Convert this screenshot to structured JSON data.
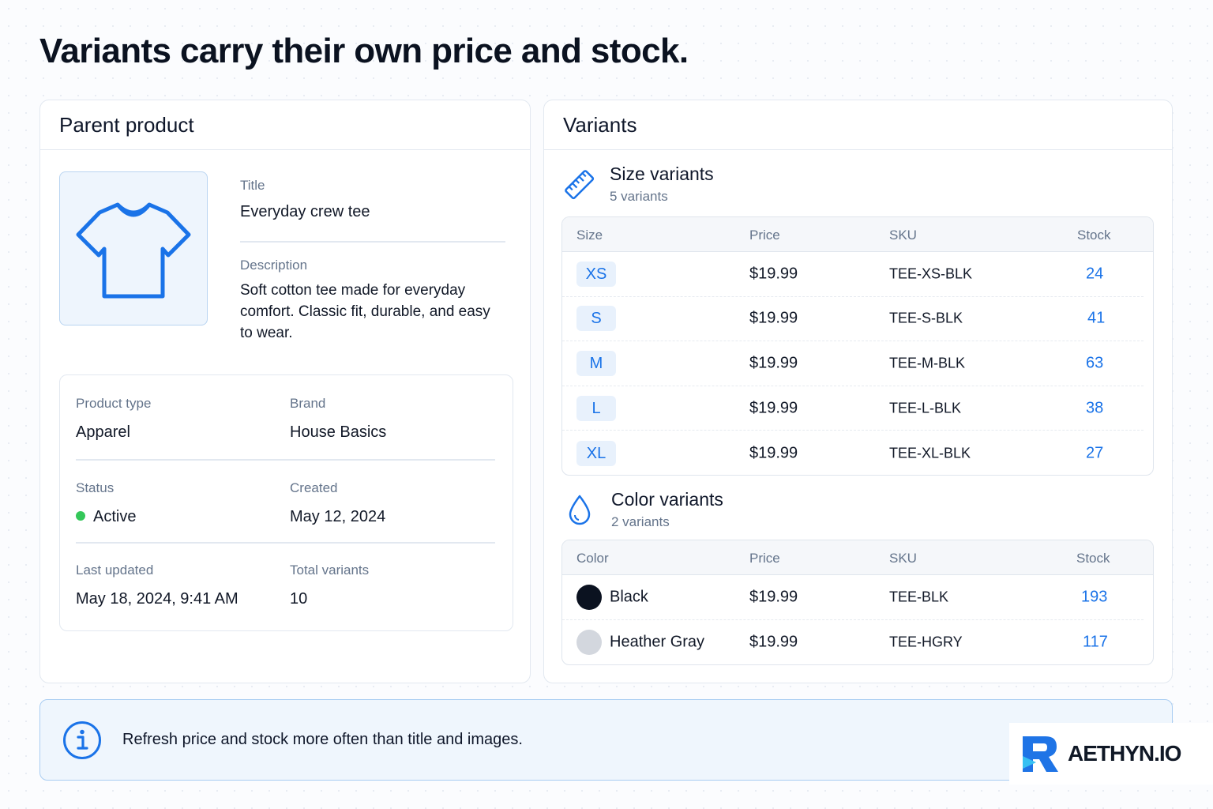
{
  "headline": "Variants carry their own price and stock.",
  "parent": {
    "heading": "Parent product",
    "image_icon": "tshirt-icon",
    "title_label": "Title",
    "title_value": "Everyday crew tee",
    "description_label": "Description",
    "description_value": "Soft cotton tee made for everyday comfort. Classic fit, durable, and easy to wear.",
    "meta": {
      "product_type_label": "Product type",
      "product_type_value": "Apparel",
      "brand_label": "Brand",
      "brand_value": "House Basics",
      "status_label": "Status",
      "status_value": "Active",
      "status_color": "#34c759",
      "created_label": "Created",
      "created_value": "May 12, 2024",
      "updated_label": "Last updated",
      "updated_value": "May 18, 2024, 9:41 AM",
      "total_label": "Total variants",
      "total_value": "10"
    }
  },
  "variants": {
    "heading": "Variants",
    "size": {
      "icon": "ruler-icon",
      "title": "Size variants",
      "subtitle": "5 variants",
      "columns": [
        "Size",
        "Price",
        "SKU",
        "Stock"
      ],
      "rows": [
        {
          "size": "XS",
          "price": "$19.99",
          "sku": "TEE-XS-BLK",
          "stock": "24"
        },
        {
          "size": "S",
          "price": "$19.99",
          "sku": "TEE-S-BLK",
          "stock": "41"
        },
        {
          "size": "M",
          "price": "$19.99",
          "sku": "TEE-M-BLK",
          "stock": "63"
        },
        {
          "size": "L",
          "price": "$19.99",
          "sku": "TEE-L-BLK",
          "stock": "38"
        },
        {
          "size": "XL",
          "price": "$19.99",
          "sku": "TEE-XL-BLK",
          "stock": "27"
        }
      ]
    },
    "color": {
      "icon": "droplet-icon",
      "title": "Color variants",
      "subtitle": "2 variants",
      "columns": [
        "Color",
        "Price",
        "SKU",
        "Stock"
      ],
      "rows": [
        {
          "color": "Black",
          "swatch": "#0b1220",
          "price": "$19.99",
          "sku": "TEE-BLK",
          "stock": "193"
        },
        {
          "color": "Heather Gray",
          "swatch": "#d3d7de",
          "price": "$19.99",
          "sku": "TEE-HGRY",
          "stock": "117"
        }
      ]
    }
  },
  "callout": {
    "icon": "info-icon",
    "text": "Refresh price and stock more often than title and images."
  },
  "logo": {
    "text": "AETHYN.IO"
  },
  "colors": {
    "accent": "#1a73e8",
    "border": "#e2e8f0"
  }
}
